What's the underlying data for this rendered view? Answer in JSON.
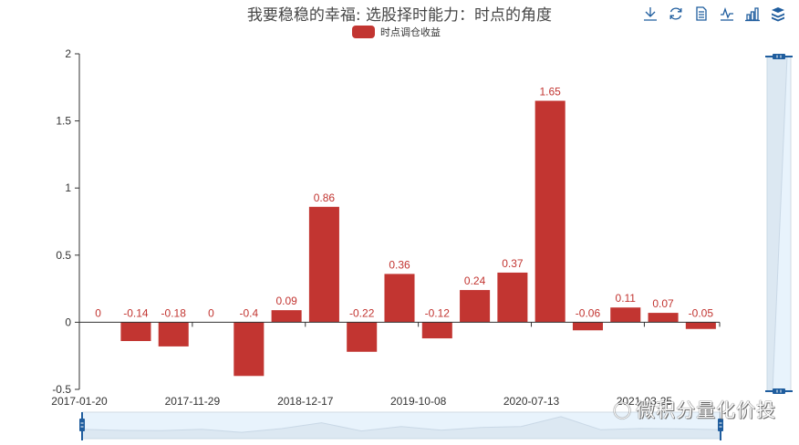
{
  "title": "我要稳稳的幸福: 选股择时能力：时点的角度",
  "legend": {
    "label": "时点调仓收益",
    "color": "#c23531"
  },
  "toolbox": [
    {
      "name": "save-image-icon",
      "label": "download"
    },
    {
      "name": "restore-icon",
      "label": "restore"
    },
    {
      "name": "data-view-icon",
      "label": "data view"
    },
    {
      "name": "line-chart-icon",
      "label": "switch to line"
    },
    {
      "name": "bar-chart-icon",
      "label": "switch to bar"
    },
    {
      "name": "stack-icon",
      "label": "stack"
    }
  ],
  "watermark": "微积分量化价投",
  "colors": {
    "bar": "#c23531",
    "label": "#c23531",
    "axis": "#333333",
    "zoom_fill": "#e8f3fc",
    "zoom_handle": "#1f5d9e"
  },
  "chart_data": {
    "type": "bar",
    "title": "我要稳稳的幸福: 选股择时能力：时点的角度",
    "xlabel": "",
    "ylabel": "",
    "ylim": [
      -0.5,
      2
    ],
    "yticks": [
      "2",
      "1.5",
      "1",
      "0.5",
      "0",
      "-0.5"
    ],
    "ytick_values": [
      2,
      1.5,
      1,
      0.5,
      0,
      -0.5
    ],
    "xtick_labels": [
      "2017-01-20",
      "2017-11-29",
      "2018-12-17",
      "2019-10-08",
      "2020-07-13",
      "2021-03-25"
    ],
    "xtick_indices": [
      0,
      3,
      6,
      9,
      12,
      15
    ],
    "grid": false,
    "legend_position": "top",
    "series": [
      {
        "name": "时点调仓收益",
        "values": [
          0,
          -0.14,
          -0.18,
          0,
          -0.4,
          0.09,
          0.86,
          -0.22,
          0.36,
          -0.12,
          0.24,
          0.37,
          1.65,
          -0.06,
          0.11,
          0.07,
          -0.05
        ],
        "labels": [
          "0",
          "-0.14",
          "-0.18",
          "0",
          "-0.4",
          "0.09",
          "0.86",
          "-0.22",
          "0.36",
          "-0.12",
          "0.24",
          "0.37",
          "1.65",
          "-0.06",
          "0.11",
          "0.07",
          "-0.05"
        ]
      }
    ]
  }
}
